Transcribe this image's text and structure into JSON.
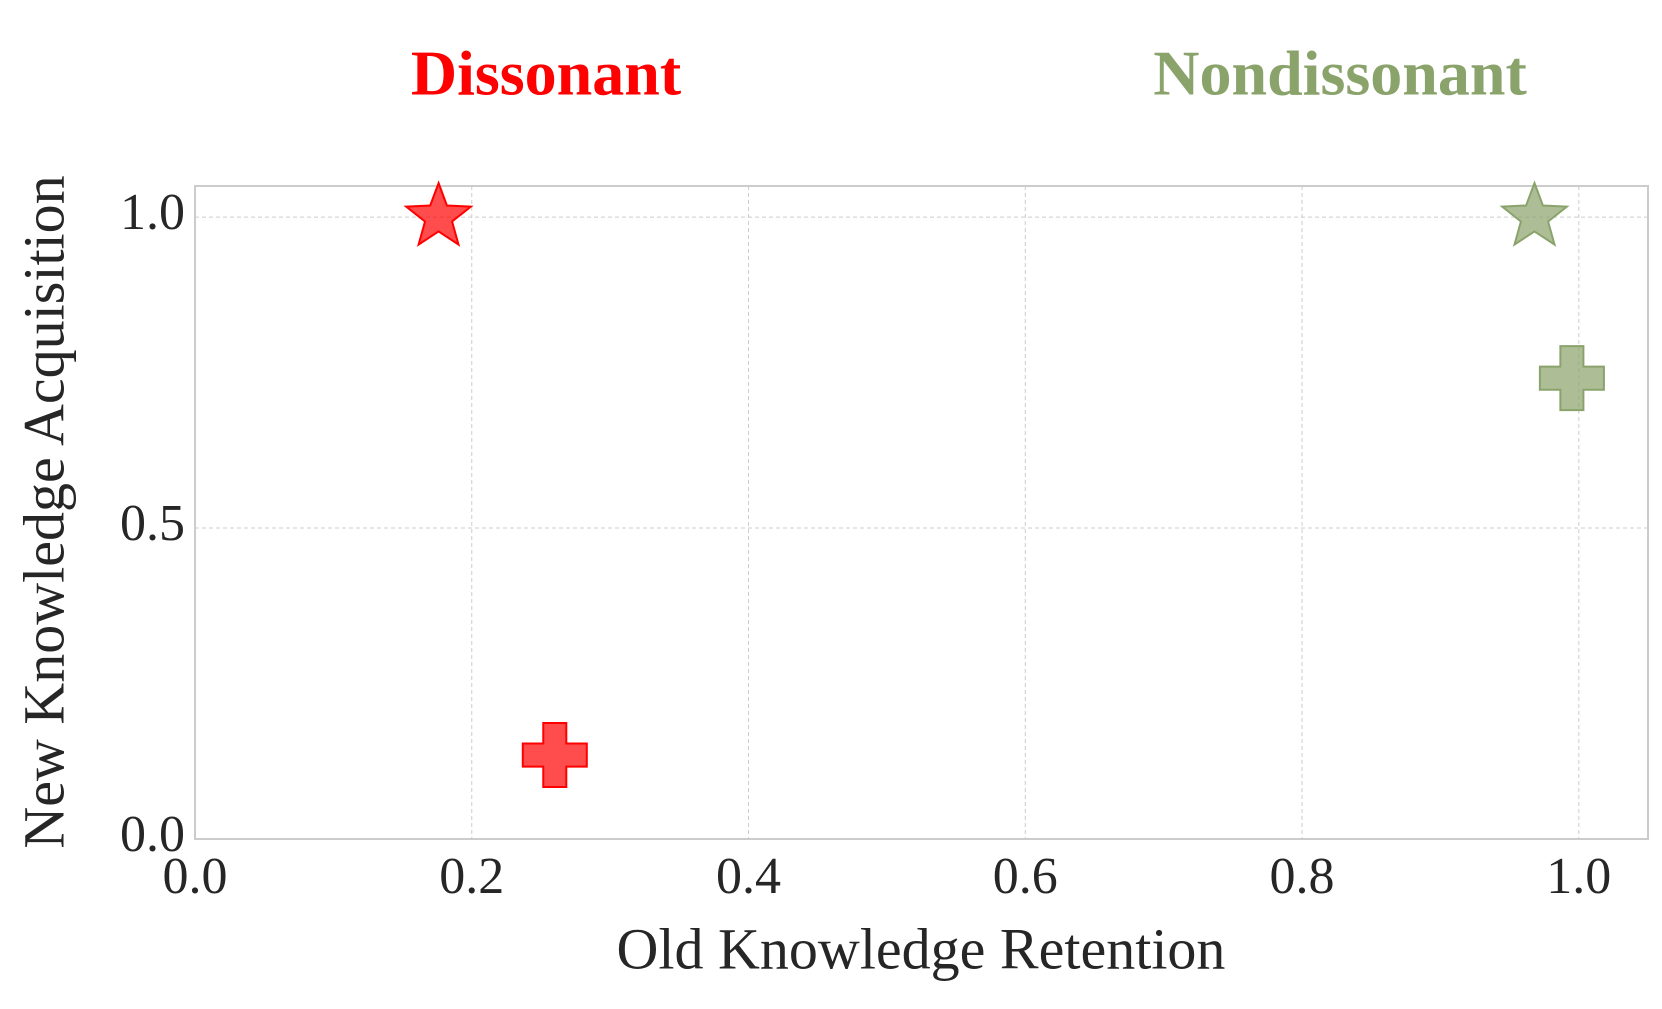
{
  "chart_data": {
    "type": "scatter",
    "xlabel": "Old Knowledge Retention",
    "ylabel": "New Knowledge Acquisition",
    "series": [
      {
        "name": "Dissonant",
        "color": "#ff0000",
        "x": [
          0.176,
          0.26
        ],
        "values": [
          1.0,
          0.135
        ],
        "markers": [
          "star",
          "plus"
        ]
      },
      {
        "name": "Nondissonant",
        "color": "#8aa36b",
        "x": [
          0.968,
          0.995
        ],
        "values": [
          1.0,
          0.741
        ],
        "markers": [
          "star",
          "plus"
        ]
      }
    ],
    "xlim": [
      0,
      1.05
    ],
    "ylim": [
      0,
      1.05
    ],
    "xticks": [
      {
        "value": 0,
        "label": "0.0"
      },
      0.2,
      0.4,
      0.6,
      0.8,
      {
        "value": 1,
        "label": "1.0"
      }
    ],
    "yticks": [
      {
        "value": 0,
        "label": "0.0"
      },
      0.5,
      {
        "value": 1,
        "label": "1.0"
      }
    ],
    "grid": true
  }
}
